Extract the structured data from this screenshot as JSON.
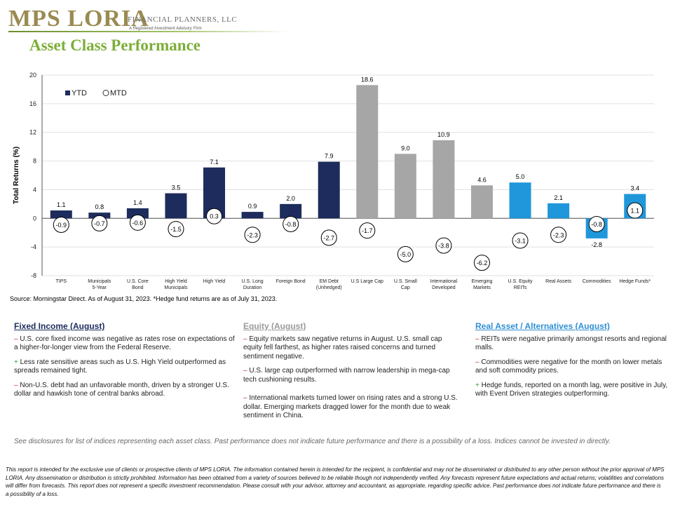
{
  "header": {
    "logo_text": "MPS LORIA",
    "logo_subtext": "FINANCIAL PLANNERS, LLC",
    "logo_tagline": "A Registered Investment Advisory Firm",
    "title": "Asset Class Performance"
  },
  "colors": {
    "title_green": "#7cae38",
    "fixed_income": "#1d2c5c",
    "equity": "#a6a6a6",
    "real_assets": "#1f97da"
  },
  "chart_data": {
    "type": "bar",
    "ylabel": "Total Returns (%)",
    "ylim": [
      -8,
      20
    ],
    "yticks": [
      -8,
      -4,
      0,
      4,
      8,
      12,
      16,
      20
    ],
    "legend_placement": "top-left",
    "legend": [
      {
        "label": "YTD",
        "marker": "square"
      },
      {
        "label": "MTD",
        "marker": "circle"
      }
    ],
    "categories": [
      {
        "label": "TIPS",
        "group": "fixed_income"
      },
      {
        "label": "Municipals 5-Year",
        "group": "fixed_income"
      },
      {
        "label": "U.S. Core Bond",
        "group": "fixed_income"
      },
      {
        "label": "High Yield Municipals",
        "group": "fixed_income"
      },
      {
        "label": "High Yield",
        "group": "fixed_income"
      },
      {
        "label": "U.S. Long Duration",
        "group": "fixed_income"
      },
      {
        "label": "Foreign Bond",
        "group": "fixed_income"
      },
      {
        "label": "EM Debt (Unhedged)",
        "group": "fixed_income"
      },
      {
        "label": "U.S Large Cap",
        "group": "equity"
      },
      {
        "label": "U.S. Small Cap",
        "group": "equity"
      },
      {
        "label": "International Developed",
        "group": "equity"
      },
      {
        "label": "Emerging Markets",
        "group": "equity"
      },
      {
        "label": "U.S. Equity REITs",
        "group": "real_assets"
      },
      {
        "label": "Real Assets",
        "group": "real_assets"
      },
      {
        "label": "Commodities",
        "group": "real_assets"
      },
      {
        "label": "Hedge Funds*",
        "group": "real_assets"
      }
    ],
    "series": [
      {
        "name": "YTD",
        "values": [
          1.1,
          0.8,
          1.4,
          3.5,
          7.1,
          0.9,
          2.0,
          7.9,
          18.6,
          9.0,
          10.9,
          4.6,
          5.0,
          2.1,
          -2.8,
          3.4
        ]
      },
      {
        "name": "MTD",
        "values": [
          -0.9,
          -0.7,
          -0.6,
          -1.5,
          0.3,
          -2.3,
          -0.8,
          -2.7,
          -1.7,
          -5.0,
          -3.8,
          -6.2,
          -3.1,
          -2.3,
          -0.8,
          1.1
        ]
      }
    ]
  },
  "source_note": "Source: Morningstar Direct. As of August 31, 2023. *Hedge fund returns are as of July 31, 2023.",
  "commentary": {
    "fixed_income": {
      "heading": "Fixed Income (August)",
      "items": [
        {
          "sign": "–",
          "text": " U.S. core fixed income was negative as rates rose on expectations of a higher-for-longer view from the Federal Reserve."
        },
        {
          "sign": "+",
          "text": " Less rate sensitive areas such as U.S. High Yield outperformed as spreads remained tight."
        },
        {
          "sign": "–",
          "text": " Non-U.S. debt had an unfavorable month, driven by a stronger U.S. dollar and hawkish tone of central banks abroad."
        }
      ]
    },
    "equity": {
      "heading": "Equity (August)",
      "items": [
        {
          "sign": "–",
          "text": " Equity markets saw negative returns in August. U.S. small cap equity fell farthest, as higher rates raised concerns and turned sentiment negative."
        },
        {
          "sign": "–",
          "text": " U.S. large cap outperformed with narrow leadership in mega-cap tech cushioning results."
        },
        {
          "sign": "–",
          "text": " International markets turned lower on rising rates and a strong U.S. dollar. Emerging markets dragged lower for the month due to weak sentiment in China."
        }
      ]
    },
    "real_assets": {
      "heading": "Real Asset / Alternatives (August)",
      "items": [
        {
          "sign": "–",
          "text": " REITs were negative primarily amongst resorts and regional malls."
        },
        {
          "sign": "–",
          "text": " Commodities were negative for the month on lower metals and soft commodity prices."
        },
        {
          "sign": "+",
          "text": " Hedge funds, reported on a month lag, were positive in July, with Event Driven strategies outperforming."
        }
      ]
    }
  },
  "disclosure": "See disclosures for list of indices representing each asset class. Past performance does not indicate future performance and there is a possibility of a loss. Indices cannot be invested in directly.",
  "footer": "This report is intended for the exclusive use of clients or prospective clients of MPS LORIA. The information contained herein is intended for the recipient, is confidential and may not be disseminated or distributed to any other person without the prior approval of MPS LORIA. Any dissemination or distribution is strictly prohibited. Information has been obtained from a variety of sources believed to be reliable though not independently verified. Any forecasts represent future expectations and actual returns; volatilities and correlations will differ from forecasts. This report does not represent a specific investment recommendation. Please consult with your advisor, attorney and accountant, as appropriate, regarding specific advice. Past performance does not indicate future performance and there is a possibility of a loss."
}
